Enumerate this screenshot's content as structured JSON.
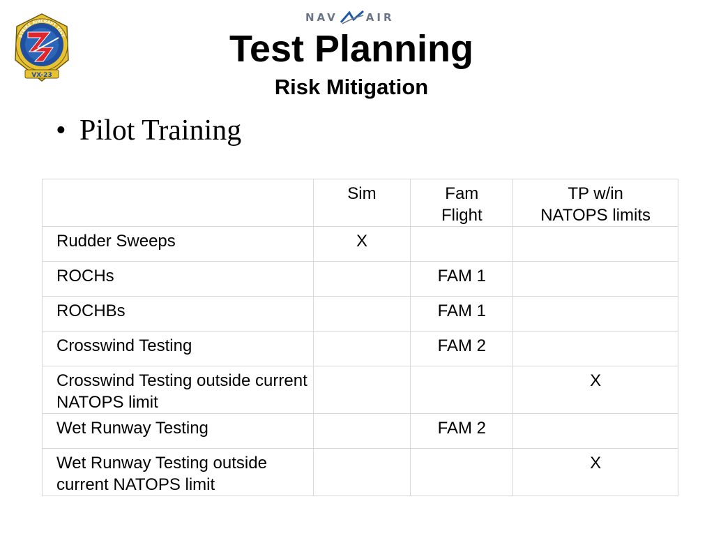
{
  "header": {
    "logo_text_top": "STRIKE AIRCRAFT TEST",
    "logo_text_bottom": "VX-23",
    "brand_left": "NAV",
    "brand_right": "AIR",
    "title": "Test Planning",
    "subtitle": "Risk Mitigation"
  },
  "bullet": "Pilot Training",
  "table": {
    "columns": [
      "",
      "Sim",
      "Fam\nFlight",
      "TP w/in\nNATOPS limits"
    ],
    "rows": [
      [
        "Rudder Sweeps",
        "X",
        "",
        ""
      ],
      [
        "ROCHs",
        "",
        "FAM 1",
        ""
      ],
      [
        "ROCHBs",
        "",
        "FAM 1",
        ""
      ],
      [
        "Crosswind Testing",
        "",
        "FAM 2",
        ""
      ],
      [
        "Crosswind Testing outside current NATOPS limit",
        "",
        "",
        "X"
      ],
      [
        "Wet Runway Testing",
        "",
        "FAM 2",
        ""
      ],
      [
        "Wet Runway Testing outside current NATOPS limit",
        "",
        "",
        "X"
      ]
    ]
  },
  "colors": {
    "logo_blue": "#1f4f9e",
    "logo_red": "#e0262d",
    "logo_gold": "#e9c232",
    "brand_gray": "#6a7687",
    "brand_blue": "#1f5aa8"
  }
}
